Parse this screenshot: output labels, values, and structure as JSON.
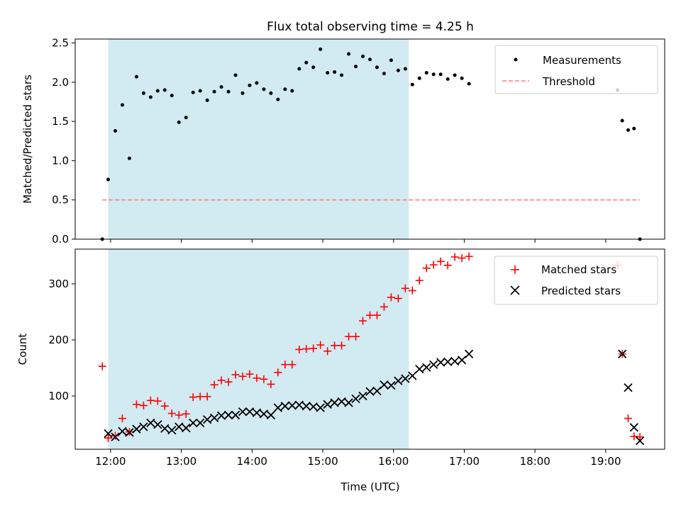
{
  "chart_data": [
    {
      "type": "scatter",
      "title": "Flux total observing time = 4.25 h",
      "xlabel": "",
      "ylabel": "Matched/Predicted stars",
      "xlim": [
        "11:30",
        "19:50"
      ],
      "ylim": [
        0,
        2.55
      ],
      "yticks": [
        "0.0",
        "0.5",
        "1.0",
        "1.5",
        "2.0",
        "2.5"
      ],
      "shaded_interval": [
        "11:58",
        "16:13"
      ],
      "shade_color": "#add8e6",
      "legend_position": "upper right",
      "series": [
        {
          "name": "Measurements",
          "marker": "dot",
          "color": "#000000",
          "points": [
            [
              "11:53",
              0.0
            ],
            [
              "11:58",
              0.76
            ],
            [
              "12:04",
              1.38
            ],
            [
              "12:10",
              1.71
            ],
            [
              "12:16",
              1.03
            ],
            [
              "12:22",
              2.07
            ],
            [
              "12:28",
              1.86
            ],
            [
              "12:34",
              1.81
            ],
            [
              "12:40",
              1.89
            ],
            [
              "12:46",
              1.9
            ],
            [
              "12:52",
              1.83
            ],
            [
              "12:58",
              1.49
            ],
            [
              "13:04",
              1.55
            ],
            [
              "13:10",
              1.87
            ],
            [
              "13:16",
              1.89
            ],
            [
              "13:22",
              1.77
            ],
            [
              "13:28",
              1.88
            ],
            [
              "13:34",
              1.94
            ],
            [
              "13:40",
              1.88
            ],
            [
              "13:46",
              2.09
            ],
            [
              "13:52",
              1.86
            ],
            [
              "13:58",
              1.96
            ],
            [
              "14:04",
              1.99
            ],
            [
              "14:10",
              1.91
            ],
            [
              "14:16",
              1.86
            ],
            [
              "14:22",
              1.78
            ],
            [
              "14:28",
              1.91
            ],
            [
              "14:34",
              1.89
            ],
            [
              "14:40",
              2.17
            ],
            [
              "14:46",
              2.25
            ],
            [
              "14:52",
              2.19
            ],
            [
              "14:58",
              2.42
            ],
            [
              "15:04",
              2.12
            ],
            [
              "15:10",
              2.13
            ],
            [
              "15:16",
              2.09
            ],
            [
              "15:22",
              2.36
            ],
            [
              "15:28",
              2.2
            ],
            [
              "15:34",
              2.33
            ],
            [
              "15:40",
              2.29
            ],
            [
              "15:46",
              2.19
            ],
            [
              "15:52",
              2.11
            ],
            [
              "15:58",
              2.28
            ],
            [
              "16:04",
              2.15
            ],
            [
              "16:10",
              2.17
            ],
            [
              "16:16",
              1.97
            ],
            [
              "16:22",
              2.05
            ],
            [
              "16:28",
              2.12
            ],
            [
              "16:34",
              2.1
            ],
            [
              "16:40",
              2.1
            ],
            [
              "16:46",
              2.04
            ],
            [
              "16:52",
              2.09
            ],
            [
              "16:58",
              2.05
            ],
            [
              "17:04",
              1.98
            ],
            [
              "19:10",
              1.9
            ],
            [
              "19:14",
              1.51
            ],
            [
              "19:19",
              1.39
            ],
            [
              "19:24",
              1.41
            ],
            [
              "19:29",
              0.0
            ]
          ]
        },
        {
          "name": "Threshold",
          "style": "dashed",
          "color": "#ff7f7f",
          "points": [
            [
              "11:53",
              0.5
            ],
            [
              "19:29",
              0.5
            ]
          ]
        }
      ]
    },
    {
      "type": "scatter",
      "title": "",
      "xlabel": "Time (UTC)",
      "ylabel": "Count",
      "xlim": [
        "11:30",
        "19:50"
      ],
      "ylim": [
        5,
        362
      ],
      "yticks": [
        "100",
        "200",
        "300"
      ],
      "xticks": [
        "12:00",
        "13:00",
        "14:00",
        "15:00",
        "16:00",
        "17:00",
        "18:00",
        "19:00"
      ],
      "shaded_interval": [
        "11:58",
        "16:13"
      ],
      "shade_color": "#add8e6",
      "legend_position": "upper right",
      "series": [
        {
          "name": "Matched stars",
          "marker": "plus",
          "color": "#ff0000",
          "points": [
            [
              "11:53",
              153
            ],
            [
              "11:58",
              25
            ],
            [
              "12:04",
              29
            ],
            [
              "12:10",
              60
            ],
            [
              "12:16",
              36
            ],
            [
              "12:22",
              85
            ],
            [
              "12:28",
              83
            ],
            [
              "12:34",
              92
            ],
            [
              "12:40",
              91
            ],
            [
              "12:46",
              82
            ],
            [
              "12:52",
              69
            ],
            [
              "12:58",
              66
            ],
            [
              "13:04",
              68
            ],
            [
              "13:10",
              98
            ],
            [
              "13:16",
              99
            ],
            [
              "13:22",
              99
            ],
            [
              "13:28",
              120
            ],
            [
              "13:34",
              128
            ],
            [
              "13:40",
              125
            ],
            [
              "13:46",
              138
            ],
            [
              "13:52",
              135
            ],
            [
              "13:58",
              139
            ],
            [
              "14:04",
              132
            ],
            [
              "14:10",
              130
            ],
            [
              "14:16",
              121
            ],
            [
              "14:22",
              142
            ],
            [
              "14:28",
              156
            ],
            [
              "14:34",
              156
            ],
            [
              "14:40",
              183
            ],
            [
              "14:46",
              184
            ],
            [
              "14:52",
              185
            ],
            [
              "14:58",
              191
            ],
            [
              "15:04",
              180
            ],
            [
              "15:10",
              190
            ],
            [
              "15:16",
              190
            ],
            [
              "15:22",
              206
            ],
            [
              "15:28",
              206
            ],
            [
              "15:34",
              234
            ],
            [
              "15:40",
              244
            ],
            [
              "15:46",
              244
            ],
            [
              "15:52",
              259
            ],
            [
              "15:58",
              276
            ],
            [
              "16:04",
              274
            ],
            [
              "16:10",
              292
            ],
            [
              "16:16",
              288
            ],
            [
              "16:22",
              306
            ],
            [
              "16:28",
              328
            ],
            [
              "16:34",
              334
            ],
            [
              "16:40",
              340
            ],
            [
              "16:46",
              333
            ],
            [
              "16:52",
              348
            ],
            [
              "16:58",
              346
            ],
            [
              "17:04",
              349
            ],
            [
              "19:10",
              333
            ],
            [
              "19:14",
              175
            ],
            [
              "19:19",
              60
            ],
            [
              "19:24",
              28
            ],
            [
              "19:29",
              27
            ]
          ]
        },
        {
          "name": "Predicted stars",
          "marker": "x",
          "color": "#000000",
          "points": [
            [
              "11:58",
              33
            ],
            [
              "12:04",
              27
            ],
            [
              "12:10",
              37
            ],
            [
              "12:16",
              35
            ],
            [
              "12:22",
              41
            ],
            [
              "12:28",
              45
            ],
            [
              "12:34",
              52
            ],
            [
              "12:40",
              49
            ],
            [
              "12:46",
              42
            ],
            [
              "12:52",
              39
            ],
            [
              "12:58",
              45
            ],
            [
              "13:04",
              43
            ],
            [
              "13:10",
              52
            ],
            [
              "13:16",
              52
            ],
            [
              "13:22",
              58
            ],
            [
              "13:28",
              61
            ],
            [
              "13:34",
              65
            ],
            [
              "13:40",
              66
            ],
            [
              "13:46",
              66
            ],
            [
              "13:52",
              72
            ],
            [
              "13:58",
              72
            ],
            [
              "14:04",
              70
            ],
            [
              "14:10",
              68
            ],
            [
              "14:16",
              66
            ],
            [
              "14:22",
              79
            ],
            [
              "14:28",
              82
            ],
            [
              "14:34",
              83
            ],
            [
              "14:40",
              84
            ],
            [
              "14:46",
              82
            ],
            [
              "14:52",
              81
            ],
            [
              "14:58",
              79
            ],
            [
              "15:04",
              85
            ],
            [
              "15:10",
              88
            ],
            [
              "15:16",
              90
            ],
            [
              "15:22",
              88
            ],
            [
              "15:28",
              95
            ],
            [
              "15:34",
              100
            ],
            [
              "15:40",
              108
            ],
            [
              "15:46",
              109
            ],
            [
              "15:52",
              120
            ],
            [
              "15:58",
              119
            ],
            [
              "16:04",
              127
            ],
            [
              "16:10",
              131
            ],
            [
              "16:16",
              136
            ],
            [
              "16:22",
              148
            ],
            [
              "16:28",
              151
            ],
            [
              "16:34",
              156
            ],
            [
              "16:40",
              160
            ],
            [
              "16:46",
              161
            ],
            [
              "16:52",
              162
            ],
            [
              "16:58",
              164
            ],
            [
              "17:04",
              175
            ],
            [
              "19:14",
              175
            ],
            [
              "19:19",
              115
            ],
            [
              "19:24",
              44
            ],
            [
              "19:29",
              20
            ]
          ]
        }
      ]
    }
  ]
}
